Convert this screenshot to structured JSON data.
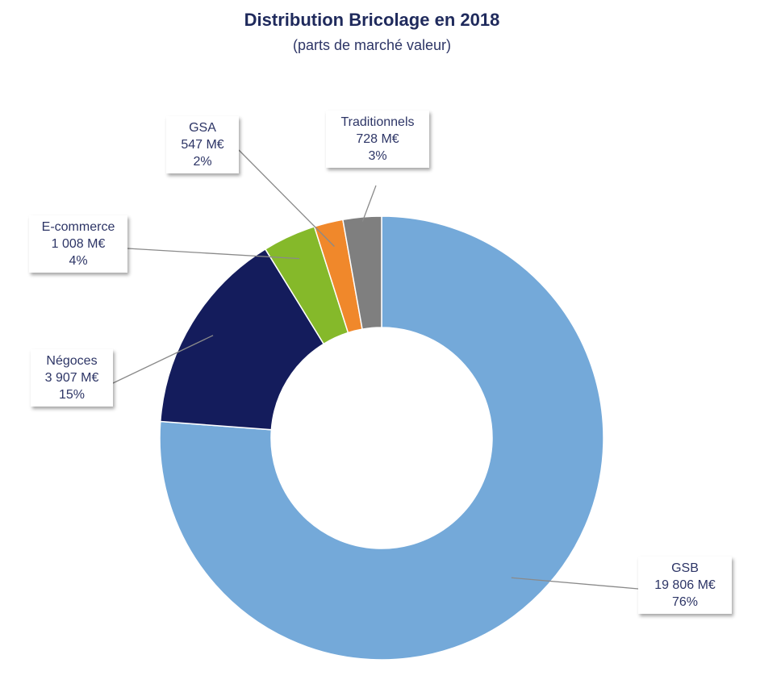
{
  "chart_data": {
    "type": "pie",
    "variant": "donut",
    "title": "Distribution Bricolage en 2018",
    "subtitle": "(parts de marché valeur)",
    "unit": "M€",
    "slices": [
      {
        "name": "GSB",
        "value": 19806,
        "value_label": "19 806  M€",
        "percent": 76,
        "percent_label": "76%",
        "color": "#74a9d9"
      },
      {
        "name": "Négoces",
        "value": 3907,
        "value_label": "3 907  M€",
        "percent": 15,
        "percent_label": "15%",
        "color": "#141c5c"
      },
      {
        "name": "E-commerce",
        "value": 1008,
        "value_label": "1 008  M€",
        "percent": 4,
        "percent_label": "4%",
        "color": "#85b92a"
      },
      {
        "name": "GSA",
        "value": 547,
        "value_label": "547  M€",
        "percent": 2,
        "percent_label": "2%",
        "color": "#f0882b"
      },
      {
        "name": "Traditionnels",
        "value": 728,
        "value_label": "728  M€",
        "percent": 3,
        "percent_label": "3%",
        "color": "#7f7f7f"
      }
    ],
    "start_angle": "12 o'clock",
    "direction": "clockwise",
    "legend": "none (data callouts)"
  }
}
